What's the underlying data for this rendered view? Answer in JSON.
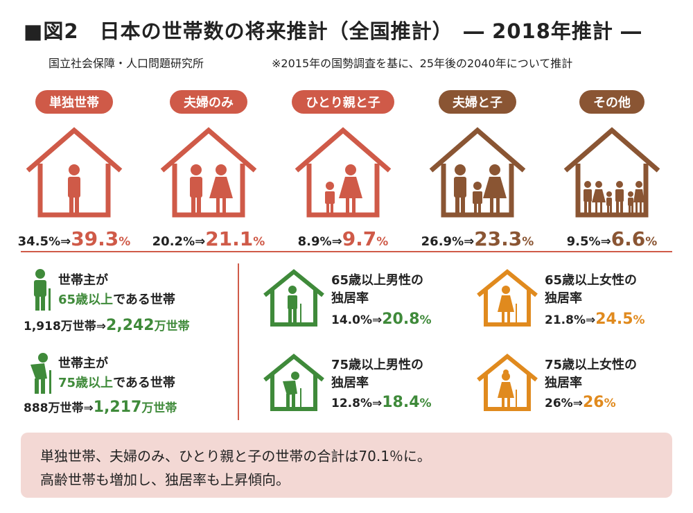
{
  "title": "■図2　日本の世帯数の将来推計（全国推計）　― 2018年推計 ―",
  "source": "国立社会保障・人口問題研究所",
  "note_top": "※2015年の国勢調査を基に、25年後の2040年について推計",
  "colors": {
    "red": "#cf5a48",
    "brown": "#8a5533",
    "green": "#3f8a3a",
    "orange": "#e08a1e",
    "note_bg": "#f3d8d4"
  },
  "household_types": [
    {
      "label": "単独世帯",
      "from": "34.5",
      "to": "39.3",
      "unit": "%",
      "arrow": "⇒",
      "color": "#cf5a48"
    },
    {
      "label": "夫婦のみ",
      "from": "20.2",
      "to": "21.1",
      "unit": "%",
      "arrow": "⇒",
      "color": "#cf5a48"
    },
    {
      "label": "ひとり親と子",
      "from": "8.9",
      "to": "9.7",
      "unit": "%",
      "arrow": "⇒",
      "color": "#cf5a48"
    },
    {
      "label": "夫婦と子",
      "from": "26.9",
      "to": "23.3",
      "unit": "%",
      "arrow": "⇒",
      "color": "#8a5533"
    },
    {
      "label": "その他",
      "from": "9.5",
      "to": "6.6",
      "unit": "%",
      "arrow": "⇒",
      "color": "#8a5533"
    }
  ],
  "elderly_households": [
    {
      "line1": "世帯主が",
      "line2_em": "65歳以上",
      "line2_rest": "である世帯",
      "from": "1,918",
      "to": "2,242",
      "unit": "万世帯",
      "arrow": "⇒"
    },
    {
      "line1": "世帯主が",
      "line2_em": "75歳以上",
      "line2_rest": "である世帯",
      "from": "888",
      "to": "1,217",
      "unit": "万世帯",
      "arrow": "⇒"
    }
  ],
  "living_alone": [
    {
      "line1": "65歳以上男性の",
      "line2": "独居率",
      "from": "14.0",
      "to": "20.8",
      "unit": "%",
      "arrow": "⇒",
      "color": "#3f8a3a"
    },
    {
      "line1": "65歳以上女性の",
      "line2": "独居率",
      "from": "21.8",
      "to": "24.5",
      "unit": "%",
      "arrow": "⇒",
      "color": "#e08a1e"
    },
    {
      "line1": "75歳以上男性の",
      "line2": "独居率",
      "from": "12.8",
      "to": "18.4",
      "unit": "%",
      "arrow": "⇒",
      "color": "#3f8a3a"
    },
    {
      "line1": "75歳以上女性の",
      "line2": "独居率",
      "from": "26",
      "to": "26",
      "unit": "%",
      "arrow": "⇒",
      "color": "#e08a1e"
    }
  ],
  "summary": {
    "line1": "単独世帯、夫婦のみ、ひとり親と子の世帯の合計は70.1％に。",
    "line2": "高齢世帯も増加し、独居率も上昇傾向。"
  }
}
